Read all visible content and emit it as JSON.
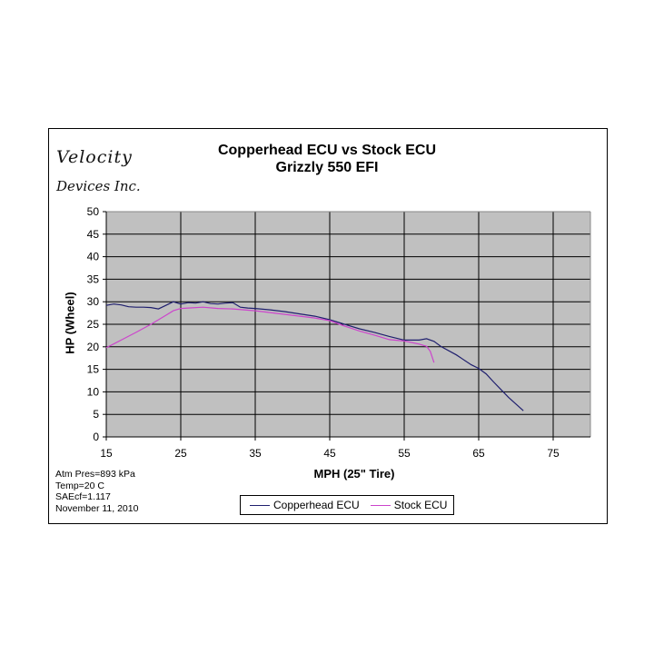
{
  "branding": {
    "line1": "Velocity",
    "line2": "Devices Inc."
  },
  "notes": [
    "Atm Pres=893 kPa",
    "Temp=20 C",
    "SAEcf=1.117",
    "November 11, 2010"
  ],
  "colors": {
    "plot_bg": "#c0c0c0",
    "copperhead": "#1f1f6e",
    "stock": "#cc44cc",
    "grid": "#000000"
  },
  "chart_data": {
    "type": "line",
    "title": "Copperhead ECU vs Stock ECU",
    "subtitle": "Grizzly 550 EFI",
    "xlabel": "MPH (25\"  Tire)",
    "ylabel": "HP (Wheel)",
    "xlim": [
      15,
      80
    ],
    "ylim": [
      0,
      50
    ],
    "xticks": [
      15,
      25,
      35,
      45,
      55,
      65,
      75
    ],
    "yticks": [
      0,
      5,
      10,
      15,
      20,
      25,
      30,
      35,
      40,
      45,
      50
    ],
    "grid": true,
    "legend_position": "bottom",
    "series": [
      {
        "name": "Copperhead ECU",
        "color": "#1f1f6e",
        "x": [
          15,
          16,
          17,
          18,
          19,
          20,
          21,
          22,
          23,
          24,
          25,
          26,
          27,
          28,
          29,
          30,
          31,
          32,
          33,
          34,
          35,
          37,
          39,
          41,
          43,
          45,
          47,
          49,
          51,
          53,
          55,
          57,
          58,
          59,
          60,
          62,
          64,
          65,
          66,
          67,
          68,
          69,
          70,
          71
        ],
        "y": [
          29.2,
          29.5,
          29.3,
          28.9,
          28.8,
          28.8,
          28.7,
          28.4,
          29.2,
          30.0,
          29.5,
          29.8,
          29.7,
          30.0,
          29.6,
          29.5,
          29.7,
          29.8,
          28.8,
          28.6,
          28.5,
          28.2,
          27.8,
          27.3,
          26.8,
          26.0,
          25.0,
          24.0,
          23.2,
          22.3,
          21.5,
          21.5,
          21.8,
          21.2,
          20.0,
          18.2,
          16.0,
          15.2,
          14.0,
          12.2,
          10.5,
          8.8,
          7.3,
          5.8
        ]
      },
      {
        "name": "Stock ECU",
        "color": "#cc44cc",
        "x": [
          15,
          17,
          19,
          21,
          23,
          24,
          25,
          26,
          28,
          30,
          32,
          35,
          38,
          40,
          43,
          45,
          47,
          49,
          51,
          53,
          55,
          57,
          58,
          58.5,
          59
        ],
        "y": [
          19.8,
          21.5,
          23.2,
          25.0,
          27.0,
          28.0,
          28.5,
          28.6,
          28.8,
          28.5,
          28.4,
          28.0,
          27.4,
          27.0,
          26.4,
          25.8,
          24.6,
          23.5,
          22.6,
          21.6,
          21.3,
          20.6,
          20.1,
          19.0,
          16.5
        ]
      }
    ]
  }
}
